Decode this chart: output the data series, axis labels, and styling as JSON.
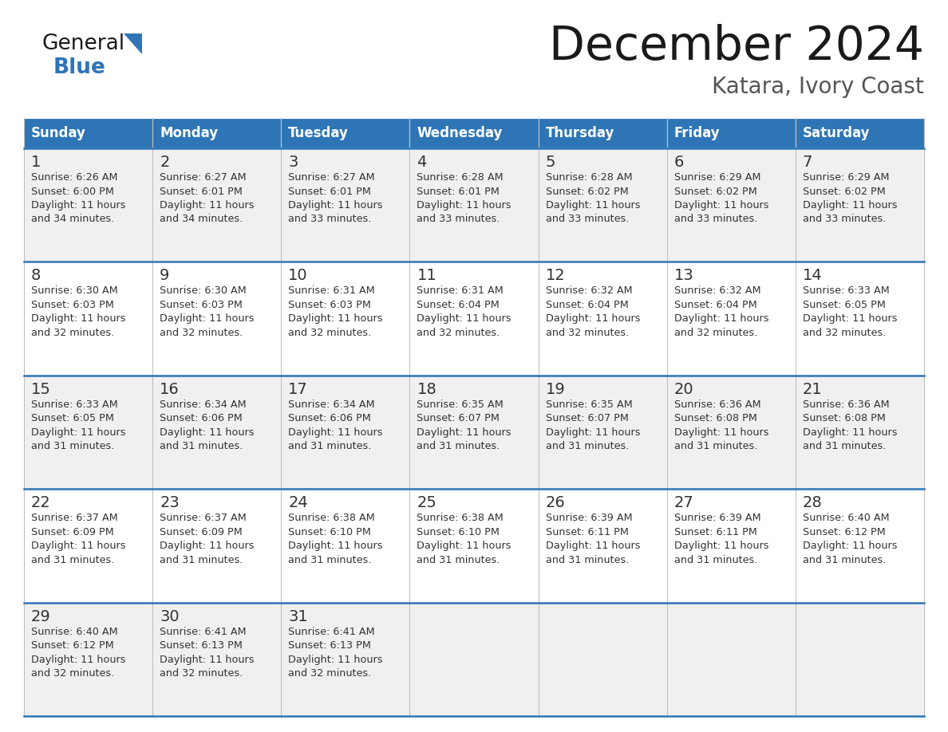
{
  "title": "December 2024",
  "subtitle": "Katara, Ivory Coast",
  "header_color": "#2E75B6",
  "header_text_color": "#FFFFFF",
  "day_names": [
    "Sunday",
    "Monday",
    "Tuesday",
    "Wednesday",
    "Thursday",
    "Friday",
    "Saturday"
  ],
  "row_bg_colors": [
    "#F0F0F0",
    "#FFFFFF"
  ],
  "grid_line_color": "#2E75B6",
  "cell_border_color": "#AAAAAA",
  "text_color": "#333333",
  "title_color": "#1A1A1A",
  "subtitle_color": "#555555",
  "logo_general_color": "#1A1A1A",
  "logo_blue_color": "#2E75B6",
  "days": [
    {
      "day": 1,
      "col": 0,
      "row": 0,
      "sunrise": "6:26 AM",
      "sunset": "6:00 PM",
      "daylight": "11 hours and 34 minutes."
    },
    {
      "day": 2,
      "col": 1,
      "row": 0,
      "sunrise": "6:27 AM",
      "sunset": "6:01 PM",
      "daylight": "11 hours and 34 minutes."
    },
    {
      "day": 3,
      "col": 2,
      "row": 0,
      "sunrise": "6:27 AM",
      "sunset": "6:01 PM",
      "daylight": "11 hours and 33 minutes."
    },
    {
      "day": 4,
      "col": 3,
      "row": 0,
      "sunrise": "6:28 AM",
      "sunset": "6:01 PM",
      "daylight": "11 hours and 33 minutes."
    },
    {
      "day": 5,
      "col": 4,
      "row": 0,
      "sunrise": "6:28 AM",
      "sunset": "6:02 PM",
      "daylight": "11 hours and 33 minutes."
    },
    {
      "day": 6,
      "col": 5,
      "row": 0,
      "sunrise": "6:29 AM",
      "sunset": "6:02 PM",
      "daylight": "11 hours and 33 minutes."
    },
    {
      "day": 7,
      "col": 6,
      "row": 0,
      "sunrise": "6:29 AM",
      "sunset": "6:02 PM",
      "daylight": "11 hours and 33 minutes."
    },
    {
      "day": 8,
      "col": 0,
      "row": 1,
      "sunrise": "6:30 AM",
      "sunset": "6:03 PM",
      "daylight": "11 hours and 32 minutes."
    },
    {
      "day": 9,
      "col": 1,
      "row": 1,
      "sunrise": "6:30 AM",
      "sunset": "6:03 PM",
      "daylight": "11 hours and 32 minutes."
    },
    {
      "day": 10,
      "col": 2,
      "row": 1,
      "sunrise": "6:31 AM",
      "sunset": "6:03 PM",
      "daylight": "11 hours and 32 minutes."
    },
    {
      "day": 11,
      "col": 3,
      "row": 1,
      "sunrise": "6:31 AM",
      "sunset": "6:04 PM",
      "daylight": "11 hours and 32 minutes."
    },
    {
      "day": 12,
      "col": 4,
      "row": 1,
      "sunrise": "6:32 AM",
      "sunset": "6:04 PM",
      "daylight": "11 hours and 32 minutes."
    },
    {
      "day": 13,
      "col": 5,
      "row": 1,
      "sunrise": "6:32 AM",
      "sunset": "6:04 PM",
      "daylight": "11 hours and 32 minutes."
    },
    {
      "day": 14,
      "col": 6,
      "row": 1,
      "sunrise": "6:33 AM",
      "sunset": "6:05 PM",
      "daylight": "11 hours and 32 minutes."
    },
    {
      "day": 15,
      "col": 0,
      "row": 2,
      "sunrise": "6:33 AM",
      "sunset": "6:05 PM",
      "daylight": "11 hours and 31 minutes."
    },
    {
      "day": 16,
      "col": 1,
      "row": 2,
      "sunrise": "6:34 AM",
      "sunset": "6:06 PM",
      "daylight": "11 hours and 31 minutes."
    },
    {
      "day": 17,
      "col": 2,
      "row": 2,
      "sunrise": "6:34 AM",
      "sunset": "6:06 PM",
      "daylight": "11 hours and 31 minutes."
    },
    {
      "day": 18,
      "col": 3,
      "row": 2,
      "sunrise": "6:35 AM",
      "sunset": "6:07 PM",
      "daylight": "11 hours and 31 minutes."
    },
    {
      "day": 19,
      "col": 4,
      "row": 2,
      "sunrise": "6:35 AM",
      "sunset": "6:07 PM",
      "daylight": "11 hours and 31 minutes."
    },
    {
      "day": 20,
      "col": 5,
      "row": 2,
      "sunrise": "6:36 AM",
      "sunset": "6:08 PM",
      "daylight": "11 hours and 31 minutes."
    },
    {
      "day": 21,
      "col": 6,
      "row": 2,
      "sunrise": "6:36 AM",
      "sunset": "6:08 PM",
      "daylight": "11 hours and 31 minutes."
    },
    {
      "day": 22,
      "col": 0,
      "row": 3,
      "sunrise": "6:37 AM",
      "sunset": "6:09 PM",
      "daylight": "11 hours and 31 minutes."
    },
    {
      "day": 23,
      "col": 1,
      "row": 3,
      "sunrise": "6:37 AM",
      "sunset": "6:09 PM",
      "daylight": "11 hours and 31 minutes."
    },
    {
      "day": 24,
      "col": 2,
      "row": 3,
      "sunrise": "6:38 AM",
      "sunset": "6:10 PM",
      "daylight": "11 hours and 31 minutes."
    },
    {
      "day": 25,
      "col": 3,
      "row": 3,
      "sunrise": "6:38 AM",
      "sunset": "6:10 PM",
      "daylight": "11 hours and 31 minutes."
    },
    {
      "day": 26,
      "col": 4,
      "row": 3,
      "sunrise": "6:39 AM",
      "sunset": "6:11 PM",
      "daylight": "11 hours and 31 minutes."
    },
    {
      "day": 27,
      "col": 5,
      "row": 3,
      "sunrise": "6:39 AM",
      "sunset": "6:11 PM",
      "daylight": "11 hours and 31 minutes."
    },
    {
      "day": 28,
      "col": 6,
      "row": 3,
      "sunrise": "6:40 AM",
      "sunset": "6:12 PM",
      "daylight": "11 hours and 31 minutes."
    },
    {
      "day": 29,
      "col": 0,
      "row": 4,
      "sunrise": "6:40 AM",
      "sunset": "6:12 PM",
      "daylight": "11 hours and 32 minutes."
    },
    {
      "day": 30,
      "col": 1,
      "row": 4,
      "sunrise": "6:41 AM",
      "sunset": "6:13 PM",
      "daylight": "11 hours and 32 minutes."
    },
    {
      "day": 31,
      "col": 2,
      "row": 4,
      "sunrise": "6:41 AM",
      "sunset": "6:13 PM",
      "daylight": "11 hours and 32 minutes."
    }
  ]
}
